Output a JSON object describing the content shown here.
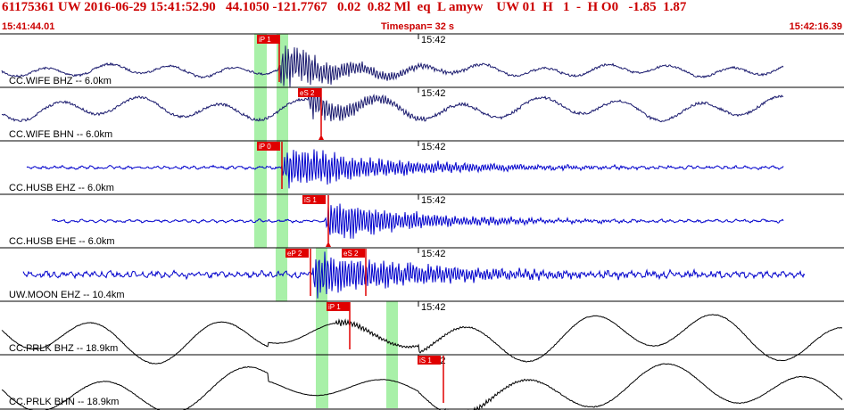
{
  "header": {
    "event_line": "61175361 UW 2016-06-29 15:41:52.90   44.1050 -121.7767   0.02  0.82 Ml  eq  L amyw    UW 01  H   1  -  H O0   -1.85  1.87",
    "start_time": "15:41:44.01",
    "timespan": "Timespan=  32 s",
    "end_time": "15:42:16.39"
  },
  "colors": {
    "header_text": "#cc0000",
    "trace_dark": "#1a1a6e",
    "trace_blue": "#0000cc",
    "trace_black": "#000000",
    "pick_flag": "#e00000",
    "window_green": "#a8f0a8",
    "panel_border": "#000000",
    "label_text": "#000000"
  },
  "minute_mark": "15:42",
  "panels": [
    {
      "label": "CC.WIFE BHZ -- 6.0km",
      "color": "trace_dark",
      "picks": [
        {
          "text": "iP 1"
        }
      ]
    },
    {
      "label": "CC.WIFE BHN -- 6.0km",
      "color": "trace_dark",
      "picks": [
        {
          "text": "eS 2"
        }
      ]
    },
    {
      "label": "CC.HUSB EHZ -- 6.0km",
      "color": "trace_blue",
      "picks": [
        {
          "text": "iP 0"
        }
      ]
    },
    {
      "label": "CC.HUSB EHE -- 6.0km",
      "color": "trace_blue",
      "picks": [
        {
          "text": "iS 1"
        }
      ]
    },
    {
      "label": "UW.MOON EHZ -- 10.4km",
      "color": "trace_blue",
      "picks": [
        {
          "text": "eP 2"
        },
        {
          "text": "eS 2"
        }
      ]
    },
    {
      "label": "CC.PRLK BHZ -- 18.9km",
      "color": "trace_black",
      "picks": [
        {
          "text": "iP 1"
        }
      ]
    },
    {
      "label": "CC.PRLK BHN -- 18.9km",
      "color": "trace_black",
      "picks": [
        {
          "text": "iS 1"
        }
      ]
    }
  ]
}
